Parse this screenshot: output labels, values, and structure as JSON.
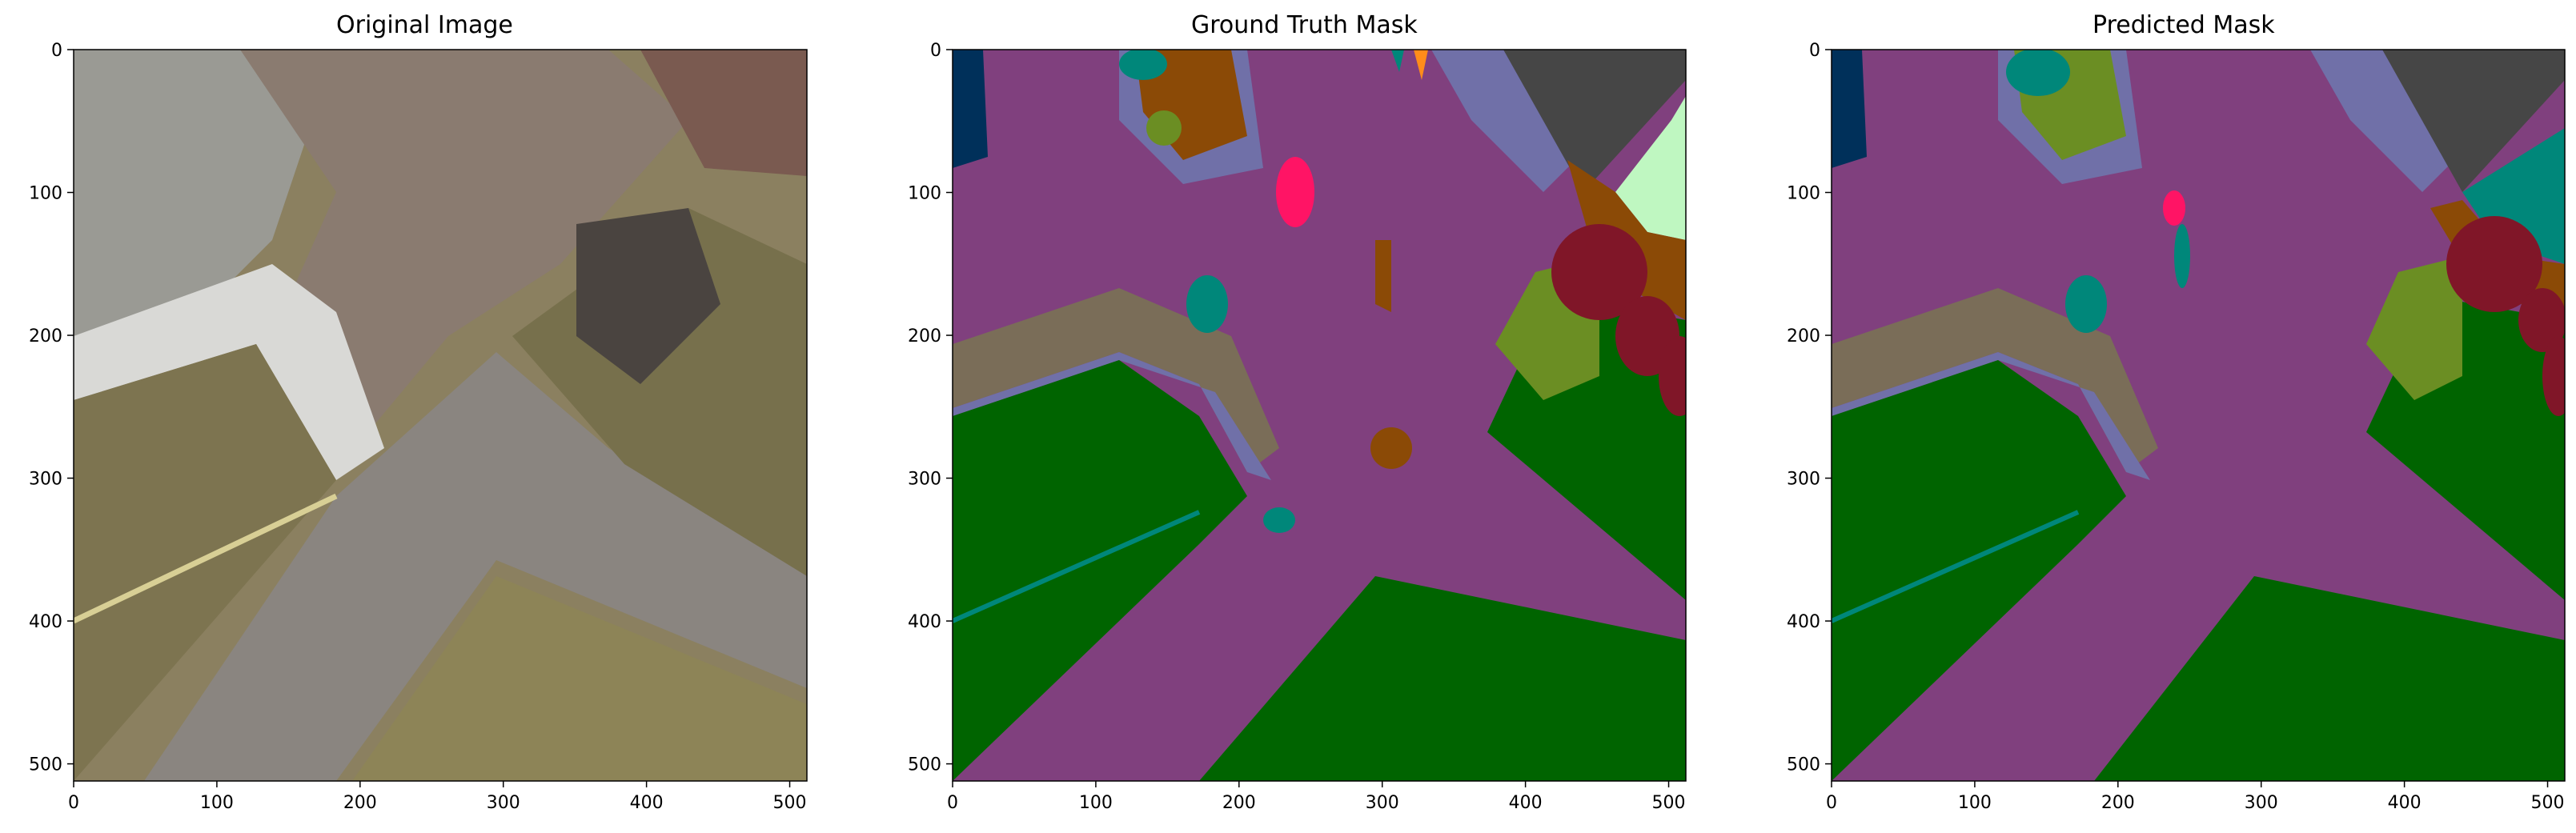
{
  "figure": {
    "panels": [
      {
        "title": "Original Image"
      },
      {
        "title": "Ground Truth Mask"
      },
      {
        "title": "Predicted Mask"
      }
    ],
    "axes": {
      "xticks": [
        "0",
        "100",
        "200",
        "300",
        "400",
        "500"
      ],
      "yticks": [
        "0",
        "100",
        "200",
        "300",
        "400",
        "500"
      ]
    }
  },
  "colors": {
    "road_purple": "#80407e",
    "grass_green": "#006400",
    "path_tan": "#7a6d58",
    "border_slate": "#7070a8",
    "roof_gray": "#464646",
    "tree_maroon": "#801628",
    "shrub_olive": "#6b8e23",
    "soil_brown": "#8b4a06",
    "person_pink": "#ff1465",
    "teal": "#00877a",
    "navy": "#00305a",
    "mint": "#bff7c1",
    "orange": "#ff8c1a"
  }
}
